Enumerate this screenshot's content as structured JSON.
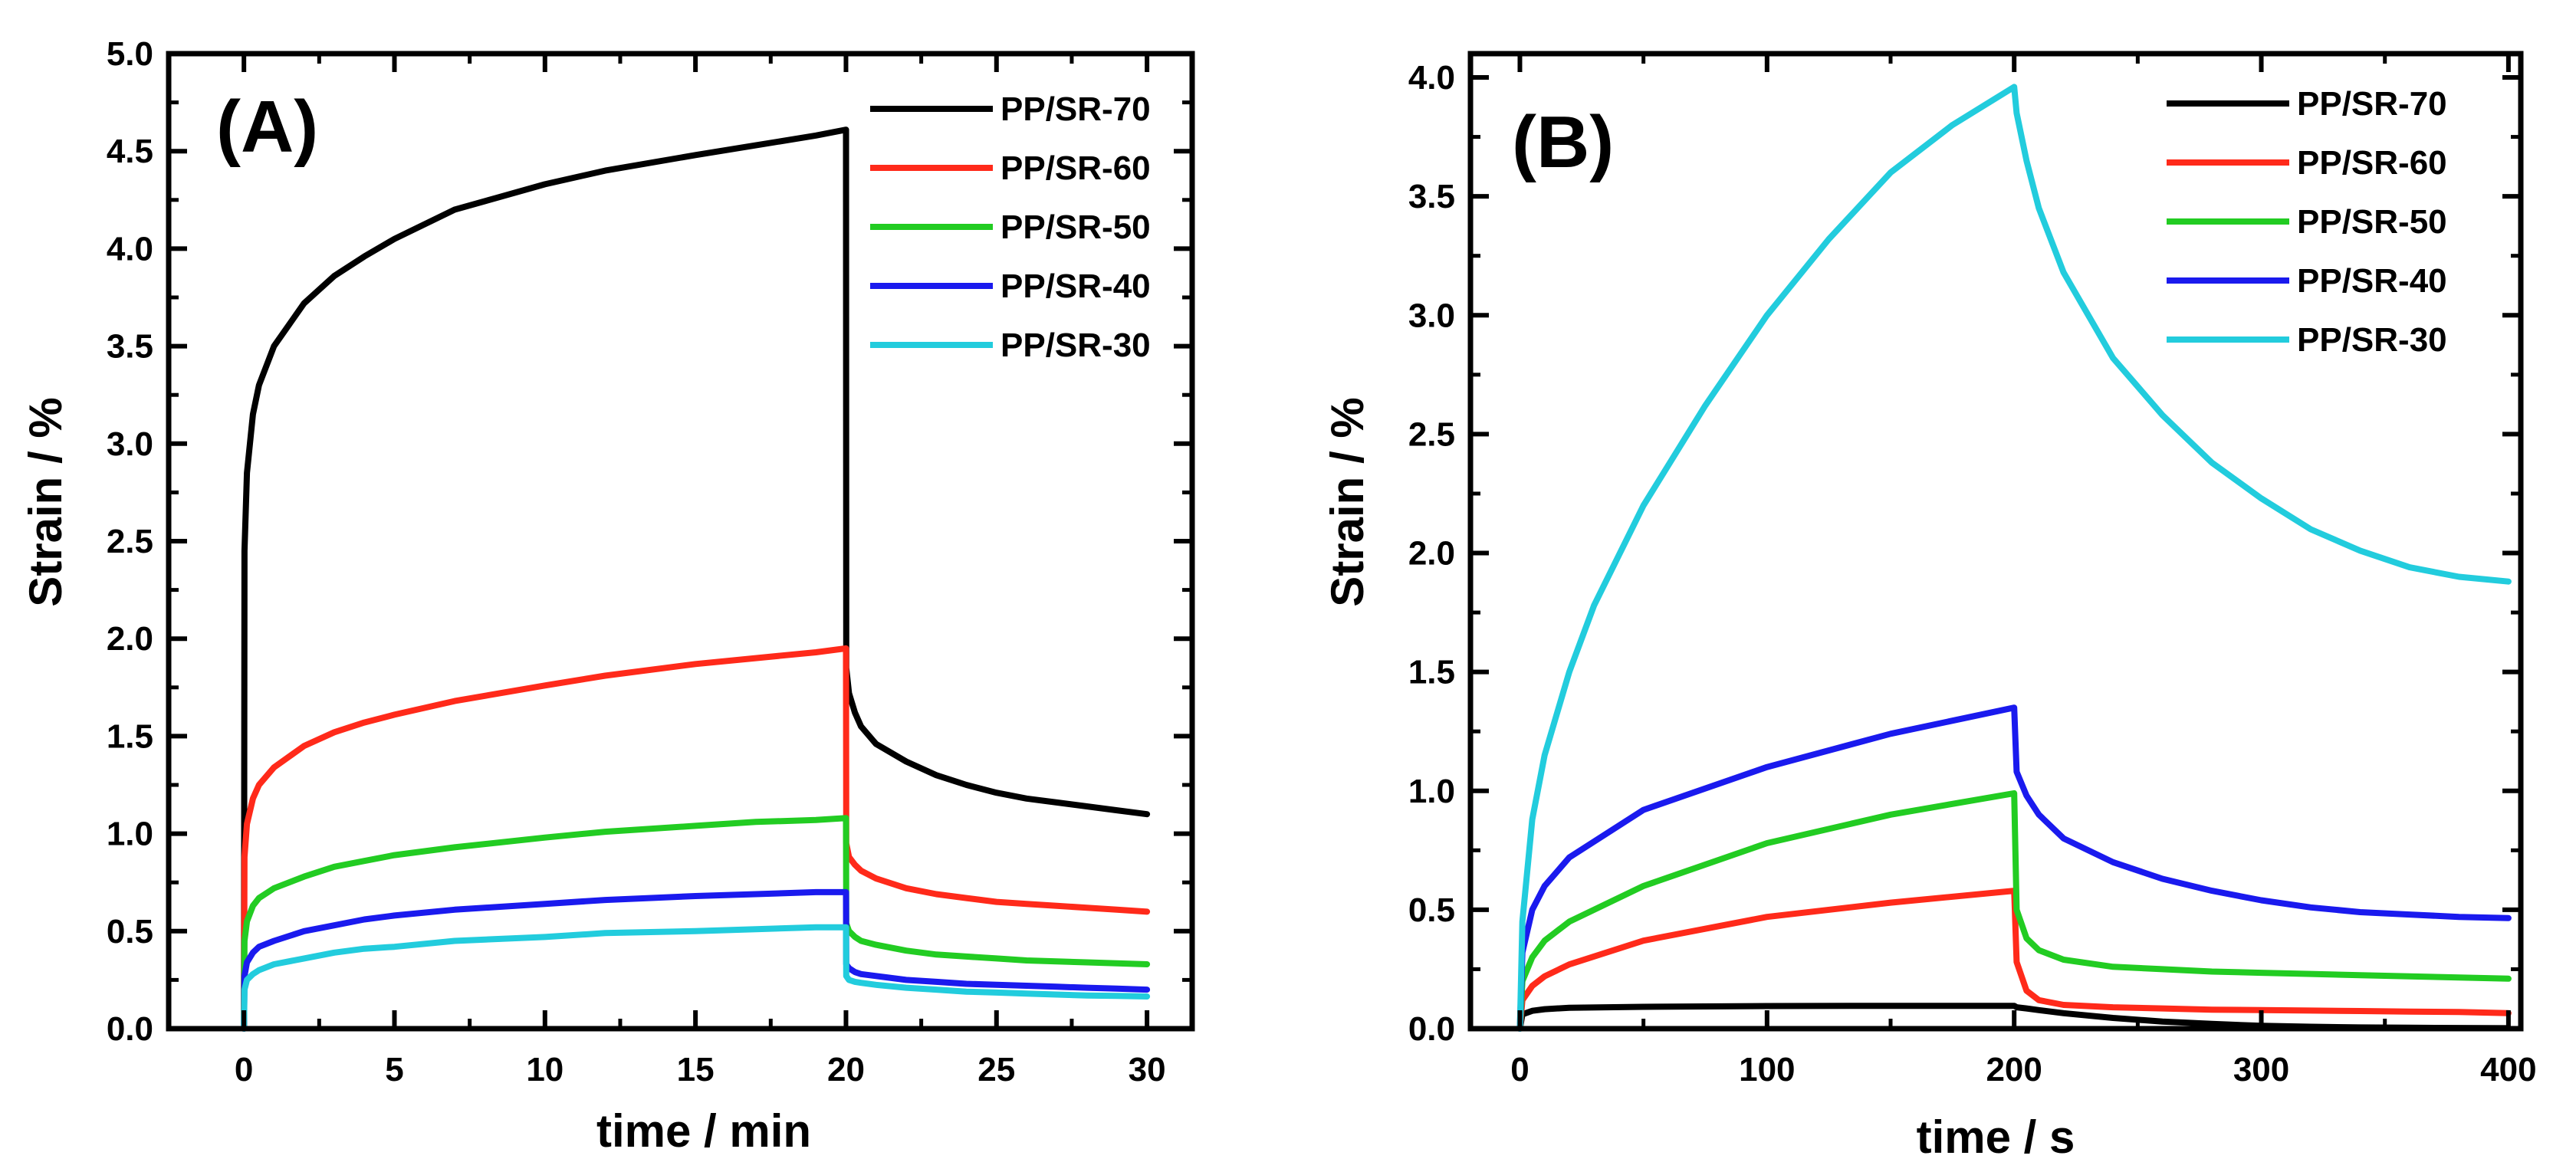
{
  "chart_data": [
    {
      "type": "line",
      "panel_label": "(A)",
      "xlabel": "time / min",
      "ylabel": "Strain / %",
      "xlim": [
        -2.5,
        31.5
      ],
      "ylim": [
        0,
        5.0
      ],
      "xticks": [
        0,
        5,
        10,
        15,
        20,
        25,
        30
      ],
      "yticks": [
        0.0,
        0.5,
        1.0,
        1.5,
        2.0,
        2.5,
        3.0,
        3.5,
        4.0,
        4.5,
        5.0
      ],
      "legend_position": "top-right",
      "load_removed_at": 20,
      "series": [
        {
          "name": "PP/SR-70",
          "color": "#000000",
          "x": [
            0,
            0.02,
            0.1,
            0.3,
            0.5,
            1,
            2,
            3,
            4,
            5,
            7,
            10,
            12,
            15,
            17,
            19,
            20,
            20.01,
            20.1,
            20.3,
            20.5,
            21,
            22,
            23,
            24,
            25,
            26,
            27,
            28,
            29,
            30
          ],
          "y": [
            0,
            2.45,
            2.85,
            3.15,
            3.3,
            3.5,
            3.72,
            3.86,
            3.96,
            4.05,
            4.2,
            4.33,
            4.4,
            4.48,
            4.53,
            4.58,
            4.61,
            1.85,
            1.72,
            1.62,
            1.55,
            1.46,
            1.37,
            1.3,
            1.25,
            1.21,
            1.18,
            1.16,
            1.14,
            1.12,
            1.1
          ]
        },
        {
          "name": "PP/SR-60",
          "color": "#ff2a1a",
          "x": [
            0,
            0.02,
            0.1,
            0.3,
            0.5,
            1,
            2,
            3,
            4,
            5,
            7,
            10,
            12,
            15,
            17,
            19,
            20,
            20.01,
            20.1,
            20.3,
            20.5,
            21,
            22,
            23,
            24,
            25,
            26,
            27,
            28,
            29,
            30
          ],
          "y": [
            0,
            0.88,
            1.05,
            1.18,
            1.25,
            1.34,
            1.45,
            1.52,
            1.57,
            1.61,
            1.68,
            1.76,
            1.81,
            1.87,
            1.9,
            1.93,
            1.95,
            0.95,
            0.88,
            0.84,
            0.81,
            0.77,
            0.72,
            0.69,
            0.67,
            0.65,
            0.64,
            0.63,
            0.62,
            0.61,
            0.6
          ]
        },
        {
          "name": "PP/SR-50",
          "color": "#22cc22",
          "x": [
            0,
            0.02,
            0.1,
            0.3,
            0.5,
            1,
            2,
            3,
            4,
            5,
            7,
            10,
            12,
            15,
            17,
            19,
            20,
            20.01,
            20.1,
            20.3,
            20.5,
            21,
            22,
            23,
            24,
            25,
            26,
            27,
            28,
            29,
            30
          ],
          "y": [
            0,
            0.45,
            0.55,
            0.63,
            0.67,
            0.72,
            0.78,
            0.83,
            0.86,
            0.89,
            0.93,
            0.98,
            1.01,
            1.04,
            1.06,
            1.07,
            1.08,
            0.54,
            0.5,
            0.47,
            0.45,
            0.43,
            0.4,
            0.38,
            0.37,
            0.36,
            0.35,
            0.345,
            0.34,
            0.335,
            0.33
          ]
        },
        {
          "name": "PP/SR-40",
          "color": "#1a1aee",
          "x": [
            0,
            0.02,
            0.1,
            0.3,
            0.5,
            1,
            2,
            3,
            4,
            5,
            7,
            10,
            12,
            15,
            17,
            19,
            20,
            20.01,
            20.1,
            20.3,
            20.5,
            21,
            22,
            23,
            24,
            25,
            26,
            27,
            28,
            29,
            30
          ],
          "y": [
            0,
            0.27,
            0.34,
            0.39,
            0.42,
            0.45,
            0.5,
            0.53,
            0.56,
            0.58,
            0.61,
            0.64,
            0.66,
            0.68,
            0.69,
            0.7,
            0.7,
            0.33,
            0.31,
            0.29,
            0.28,
            0.27,
            0.25,
            0.24,
            0.23,
            0.225,
            0.22,
            0.215,
            0.21,
            0.205,
            0.2
          ]
        },
        {
          "name": "PP/SR-30",
          "color": "#22ccdd",
          "x": [
            0,
            0.02,
            0.1,
            0.3,
            0.5,
            1,
            2,
            3,
            4,
            5,
            7,
            10,
            12,
            15,
            17,
            19,
            20,
            20.01,
            20.1,
            20.3,
            20.5,
            21,
            22,
            23,
            24,
            25,
            26,
            27,
            28,
            29,
            30
          ],
          "y": [
            0,
            0.2,
            0.25,
            0.28,
            0.3,
            0.33,
            0.36,
            0.39,
            0.41,
            0.42,
            0.45,
            0.47,
            0.49,
            0.5,
            0.51,
            0.52,
            0.52,
            0.27,
            0.25,
            0.24,
            0.235,
            0.225,
            0.21,
            0.2,
            0.19,
            0.185,
            0.18,
            0.175,
            0.17,
            0.168,
            0.165
          ]
        }
      ]
    },
    {
      "type": "line",
      "panel_label": "(B)",
      "xlabel": "time / s",
      "ylabel": "Strain / %",
      "xlim": [
        -20,
        405
      ],
      "ylim": [
        0,
        4.1
      ],
      "xticks": [
        0,
        100,
        200,
        300,
        400
      ],
      "yticks": [
        0.0,
        0.5,
        1.0,
        1.5,
        2.0,
        2.5,
        3.0,
        3.5,
        4.0
      ],
      "legend_position": "top-right",
      "load_removed_at": 200,
      "series": [
        {
          "name": "PP/SR-70",
          "color": "#000000",
          "x": [
            0,
            1,
            5,
            10,
            20,
            50,
            100,
            150,
            200,
            201,
            205,
            210,
            220,
            240,
            260,
            280,
            300,
            320,
            340,
            360,
            380,
            400
          ],
          "y": [
            0,
            0.06,
            0.075,
            0.082,
            0.088,
            0.092,
            0.095,
            0.096,
            0.096,
            0.09,
            0.085,
            0.078,
            0.065,
            0.045,
            0.03,
            0.02,
            0.012,
            0.008,
            0.005,
            0.004,
            0.003,
            0.002
          ]
        },
        {
          "name": "PP/SR-60",
          "color": "#ff2a1a",
          "x": [
            0,
            1,
            5,
            10,
            20,
            50,
            100,
            150,
            200,
            201,
            205,
            210,
            220,
            240,
            260,
            280,
            300,
            320,
            340,
            360,
            380,
            400
          ],
          "y": [
            0,
            0.12,
            0.18,
            0.22,
            0.27,
            0.37,
            0.47,
            0.53,
            0.58,
            0.28,
            0.16,
            0.12,
            0.1,
            0.09,
            0.085,
            0.08,
            0.078,
            0.076,
            0.074,
            0.072,
            0.07,
            0.065
          ]
        },
        {
          "name": "PP/SR-50",
          "color": "#22cc22",
          "x": [
            0,
            1,
            5,
            10,
            20,
            50,
            100,
            150,
            200,
            201,
            205,
            210,
            220,
            240,
            260,
            280,
            300,
            320,
            340,
            360,
            380,
            400
          ],
          "y": [
            0,
            0.2,
            0.3,
            0.37,
            0.45,
            0.6,
            0.78,
            0.9,
            0.99,
            0.5,
            0.38,
            0.33,
            0.29,
            0.26,
            0.25,
            0.24,
            0.235,
            0.23,
            0.225,
            0.22,
            0.215,
            0.21
          ]
        },
        {
          "name": "PP/SR-40",
          "color": "#1a1aee",
          "x": [
            0,
            1,
            5,
            10,
            20,
            50,
            100,
            150,
            200,
            201,
            205,
            210,
            220,
            240,
            260,
            280,
            300,
            320,
            340,
            360,
            380,
            400
          ],
          "y": [
            0,
            0.32,
            0.5,
            0.6,
            0.72,
            0.92,
            1.1,
            1.24,
            1.35,
            1.08,
            0.98,
            0.9,
            0.8,
            0.7,
            0.63,
            0.58,
            0.54,
            0.51,
            0.49,
            0.48,
            0.47,
            0.465
          ]
        },
        {
          "name": "PP/SR-30",
          "color": "#22ccdd",
          "x": [
            0,
            1,
            5,
            10,
            20,
            30,
            50,
            75,
            100,
            125,
            150,
            175,
            200,
            201,
            205,
            210,
            220,
            240,
            260,
            280,
            300,
            320,
            340,
            360,
            380,
            400
          ],
          "y": [
            0,
            0.45,
            0.88,
            1.15,
            1.5,
            1.78,
            2.2,
            2.62,
            3.0,
            3.32,
            3.6,
            3.8,
            3.96,
            3.85,
            3.65,
            3.45,
            3.18,
            2.82,
            2.58,
            2.38,
            2.23,
            2.1,
            2.01,
            1.94,
            1.9,
            1.88
          ]
        }
      ]
    }
  ]
}
